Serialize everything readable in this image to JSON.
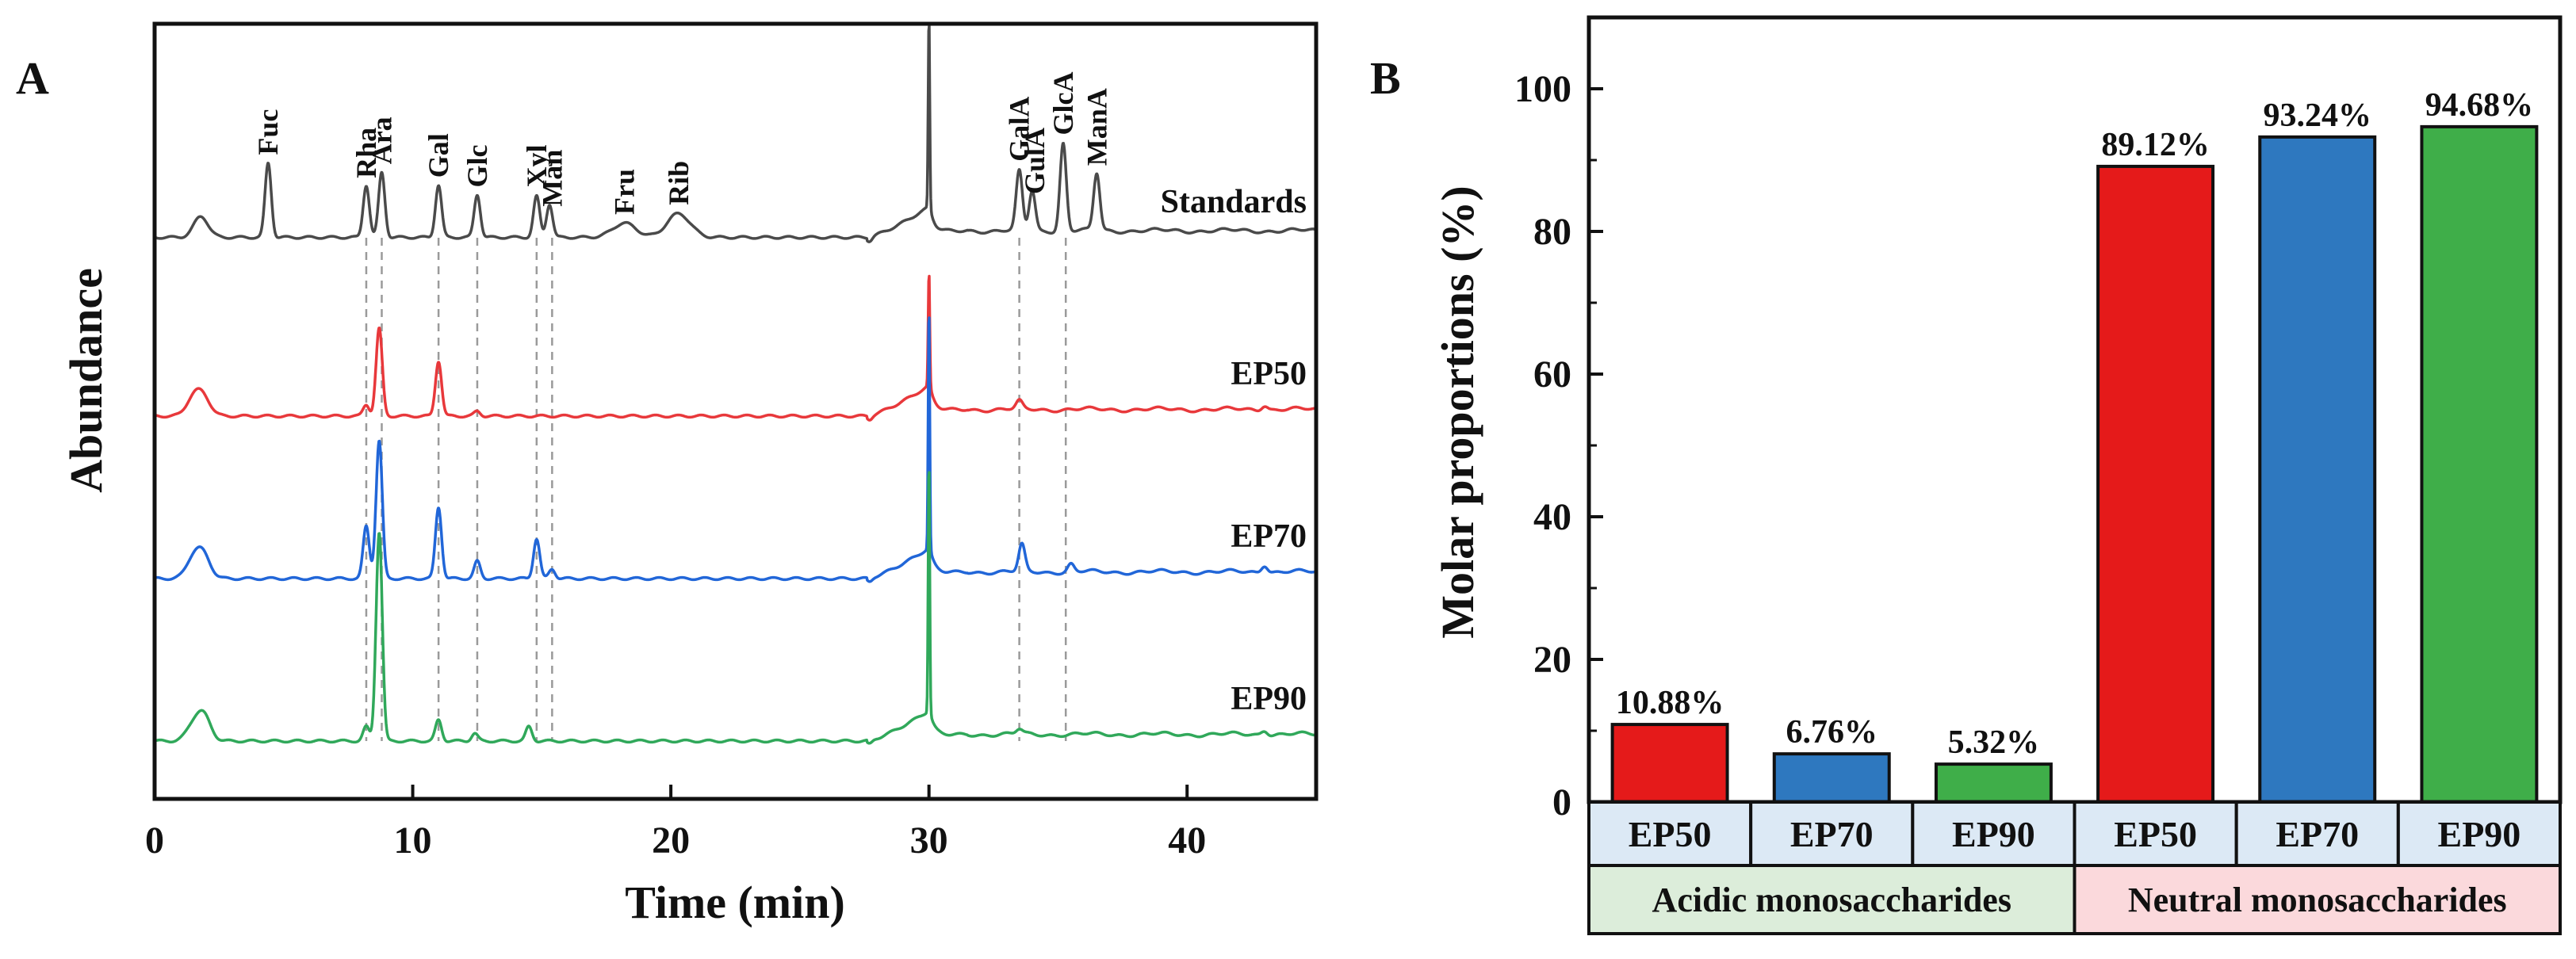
{
  "panel_labels": {
    "a": "A",
    "b": "B"
  },
  "colors": {
    "Standards": "#4a4a4a",
    "EP50": "#e8383b",
    "EP70": "#2166d8",
    "EP90": "#30a85a",
    "bar_ep50": "#e51a1a",
    "bar_ep70": "#2e78bf",
    "bar_ep90": "#3fae49",
    "cat_bg": "#dce9f5",
    "acidic_bg": "#dcedda",
    "neutral_bg": "#fbd9dc"
  },
  "chart_data": [
    {
      "type": "line",
      "title": "",
      "xlabel": "Time (min)",
      "ylabel": "Abundance",
      "xlim": [
        0,
        45
      ],
      "xticks": [
        0,
        10,
        20,
        30,
        40
      ],
      "grid": false,
      "series": [
        {
          "name": "Standards",
          "offset": 3.1,
          "peaks": [
            [
              1.8,
              0.22
            ],
            [
              4.4,
              0.78
            ],
            [
              8.2,
              0.55
            ],
            [
              8.8,
              0.68
            ],
            [
              11.0,
              0.55
            ],
            [
              12.5,
              0.45
            ],
            [
              14.8,
              0.43
            ],
            [
              15.3,
              0.35
            ],
            [
              18.2,
              0.15
            ],
            [
              20.3,
              0.25
            ],
            [
              33.5,
              0.62
            ],
            [
              34.0,
              0.42
            ],
            [
              35.2,
              0.92
            ],
            [
              36.5,
              0.6
            ]
          ]
        },
        {
          "name": "EP50",
          "offset": 2.0,
          "peaks": [
            [
              1.5,
              0.18
            ],
            [
              1.9,
              0.18
            ],
            [
              8.2,
              0.12
            ],
            [
              8.7,
              0.92
            ],
            [
              11.0,
              0.58
            ],
            [
              12.5,
              0.05
            ],
            [
              33.5,
              0.08
            ],
            [
              43.0,
              0.05
            ]
          ]
        },
        {
          "name": "EP70",
          "offset": 1.0,
          "peaks": [
            [
              1.5,
              0.2
            ],
            [
              1.9,
              0.22
            ],
            [
              8.2,
              0.55
            ],
            [
              8.7,
              1.45
            ],
            [
              11.0,
              0.75
            ],
            [
              12.5,
              0.18
            ],
            [
              14.8,
              0.42
            ],
            [
              15.4,
              0.1
            ],
            [
              33.6,
              0.28
            ],
            [
              35.5,
              0.08
            ],
            [
              43.0,
              0.08
            ]
          ]
        },
        {
          "name": "EP90",
          "offset": 0.0,
          "peaks": [
            [
              1.5,
              0.15
            ],
            [
              1.9,
              0.25
            ],
            [
              8.2,
              0.15
            ],
            [
              8.7,
              2.2
            ],
            [
              11.0,
              0.22
            ],
            [
              12.4,
              0.08
            ],
            [
              14.5,
              0.15
            ],
            [
              33.5,
              0.05
            ],
            [
              43.0,
              0.05
            ]
          ]
        }
      ],
      "solvent_peak": {
        "x": 30.0,
        "heights": {
          "Standards": 1.95,
          "EP50": 1.15,
          "EP70": 2.5,
          "EP90": 2.6
        }
      },
      "peak_labels": [
        {
          "text": "Fuc",
          "x": 4.4
        },
        {
          "text": "Rha",
          "x": 8.2
        },
        {
          "text": "Ara",
          "x": 8.8
        },
        {
          "text": "Gal",
          "x": 11.0
        },
        {
          "text": "Glc",
          "x": 12.5
        },
        {
          "text": "Xyl",
          "x": 14.8
        },
        {
          "text": "Man",
          "x": 15.4
        },
        {
          "text": "Fru",
          "x": 18.2
        },
        {
          "text": "Rib",
          "x": 20.3
        },
        {
          "text": "GalA",
          "x": 33.5
        },
        {
          "text": "GulA",
          "x": 34.1
        },
        {
          "text": "GlcA",
          "x": 35.2
        },
        {
          "text": "ManA",
          "x": 36.5
        }
      ],
      "reference_lines_x": [
        8.2,
        8.8,
        11.0,
        12.5,
        14.8,
        15.4,
        33.5,
        35.3
      ]
    },
    {
      "type": "bar",
      "title": "",
      "xlabel": "",
      "ylabel": "Molar proportions (%)",
      "ylim": [
        0,
        110
      ],
      "yticks": [
        0,
        20,
        40,
        60,
        80,
        100
      ],
      "grid": false,
      "categories": [
        "EP50",
        "EP70",
        "EP90",
        "EP50",
        "EP70",
        "EP90"
      ],
      "values": [
        10.88,
        6.76,
        5.32,
        89.12,
        93.24,
        94.68
      ],
      "value_labels": [
        "10.88%",
        "6.76%",
        "5.32%",
        "89.12%",
        "93.24%",
        "94.68%"
      ],
      "groups": [
        {
          "name": "Acidic monosaccharides",
          "members": [
            0,
            1,
            2
          ]
        },
        {
          "name": "Neutral monosaccharides",
          "members": [
            3,
            4,
            5
          ]
        }
      ]
    }
  ]
}
